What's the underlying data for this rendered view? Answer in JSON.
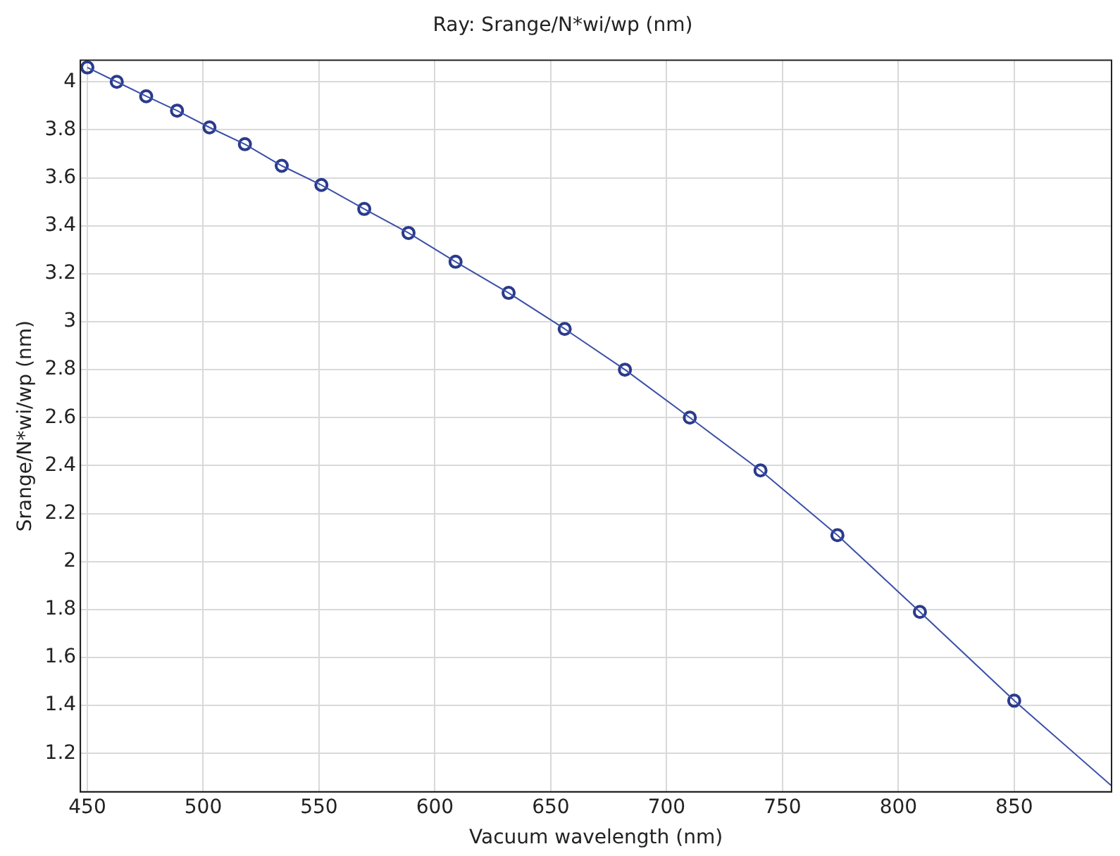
{
  "chart_data": {
    "type": "line",
    "title": "Ray: Srange/N*wi/wp (nm)",
    "xlabel": "Vacuum wavelength (nm)",
    "ylabel": "Srange/N*wi/wp (nm)",
    "xlim": [
      447,
      892
    ],
    "xticks": [
      450,
      500,
      550,
      600,
      650,
      700,
      750,
      800,
      850
    ],
    "ylim": [
      1.04,
      4.09
    ],
    "yticks": [
      1.2,
      1.4,
      1.6,
      1.8,
      2,
      2.2,
      2.4,
      2.6,
      2.8,
      3,
      3.2,
      3.4,
      3.6,
      3.8,
      4
    ],
    "grid": true,
    "legend": false,
    "series": [
      {
        "marker": "none",
        "line_style": "solid",
        "color": "#3a4fa8",
        "x": [
          450,
          462.7,
          475.4,
          488.7,
          502.7,
          518,
          533.9,
          551,
          569.5,
          588.6,
          608.9,
          631.8,
          656,
          682,
          710,
          740.5,
          773.7,
          809.3,
          850,
          892
        ],
        "values": [
          4.06,
          4.0,
          3.94,
          3.88,
          3.81,
          3.74,
          3.65,
          3.57,
          3.47,
          3.37,
          3.25,
          3.12,
          2.97,
          2.8,
          2.6,
          2.38,
          2.11,
          1.79,
          1.42,
          1.065
        ]
      },
      {
        "type": "scatter",
        "marker": "circle",
        "color": "#2a3a8c",
        "x": [
          450,
          462.7,
          475.4,
          488.7,
          502.7,
          518,
          533.9,
          551,
          569.5,
          588.6,
          608.9,
          631.8,
          656,
          682,
          710,
          740.5,
          773.7,
          809.3,
          850
        ],
        "values": [
          4.06,
          4.0,
          3.94,
          3.88,
          3.81,
          3.74,
          3.65,
          3.57,
          3.47,
          3.37,
          3.25,
          3.12,
          2.97,
          2.8,
          2.6,
          2.38,
          2.11,
          1.79,
          1.42
        ]
      }
    ]
  }
}
